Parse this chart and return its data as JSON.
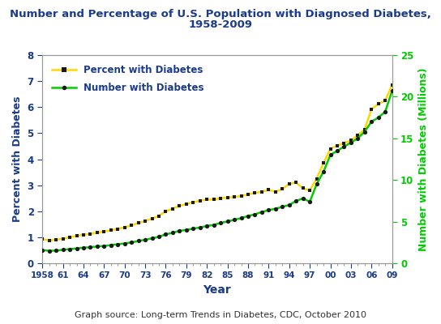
{
  "title_line1": "Number and Percentage of U.S. Population with Diagnosed Diabetes,",
  "title_line2": "1958-2009",
  "title_color": "#1a3a8a",
  "xlabel": "Year",
  "ylabel_left": "Percent with Diabetes",
  "ylabel_right": "Number with Diabetes (Millions)",
  "ylabel_color_left": "#1a3a8a",
  "ylabel_color_right": "#00bb00",
  "source_text": "Graph source: Long-term Trends in Diabetes, CDC, October 2010",
  "xlim": [
    1958,
    2009
  ],
  "ylim_left": [
    0,
    8
  ],
  "ylim_right": [
    0,
    25
  ],
  "xtick_labels": [
    "1958",
    "61",
    "64",
    "67",
    "70",
    "73",
    "76",
    "79",
    "82",
    "85",
    "88",
    "91",
    "94",
    "97",
    "00",
    "03",
    "06",
    "09"
  ],
  "xtick_positions": [
    1958,
    1961,
    1964,
    1967,
    1970,
    1973,
    1976,
    1979,
    1982,
    1985,
    1988,
    1991,
    1994,
    1997,
    2000,
    2003,
    2006,
    2009
  ],
  "percent_years": [
    1958,
    1959,
    1960,
    1961,
    1962,
    1963,
    1964,
    1965,
    1966,
    1967,
    1968,
    1969,
    1970,
    1971,
    1972,
    1973,
    1974,
    1975,
    1976,
    1977,
    1978,
    1979,
    1980,
    1981,
    1982,
    1983,
    1984,
    1985,
    1986,
    1987,
    1988,
    1989,
    1990,
    1991,
    1992,
    1993,
    1994,
    1995,
    1996,
    1997,
    1998,
    1999,
    2000,
    2001,
    2002,
    2003,
    2004,
    2005,
    2006,
    2007,
    2008,
    2009
  ],
  "percent_values": [
    0.93,
    0.88,
    0.9,
    0.95,
    1.0,
    1.05,
    1.1,
    1.13,
    1.18,
    1.22,
    1.27,
    1.32,
    1.38,
    1.45,
    1.55,
    1.62,
    1.72,
    1.82,
    2.0,
    2.1,
    2.2,
    2.28,
    2.35,
    2.4,
    2.45,
    2.45,
    2.5,
    2.52,
    2.55,
    2.58,
    2.65,
    2.7,
    2.75,
    2.82,
    2.75,
    2.85,
    3.05,
    3.1,
    2.88,
    2.8,
    3.25,
    3.85,
    4.4,
    4.52,
    4.62,
    4.72,
    4.92,
    5.15,
    5.92,
    6.12,
    6.25,
    6.85
  ],
  "number_years": [
    1958,
    1959,
    1960,
    1961,
    1962,
    1963,
    1964,
    1965,
    1966,
    1967,
    1968,
    1969,
    1970,
    1971,
    1972,
    1973,
    1974,
    1975,
    1976,
    1977,
    1978,
    1979,
    1980,
    1981,
    1982,
    1983,
    1984,
    1985,
    1986,
    1987,
    1988,
    1989,
    1990,
    1991,
    1992,
    1993,
    1994,
    1995,
    1996,
    1997,
    1998,
    1999,
    2000,
    2001,
    2002,
    2003,
    2004,
    2005,
    2006,
    2007,
    2008,
    2009
  ],
  "number_values_millions": [
    1.58,
    1.5,
    1.52,
    1.62,
    1.7,
    1.78,
    1.87,
    1.93,
    2.02,
    2.08,
    2.18,
    2.28,
    2.38,
    2.5,
    2.68,
    2.82,
    3.0,
    3.18,
    3.48,
    3.66,
    3.9,
    4.0,
    4.16,
    4.3,
    4.48,
    4.6,
    4.85,
    5.02,
    5.22,
    5.42,
    5.68,
    5.88,
    6.16,
    6.38,
    6.55,
    6.78,
    7.0,
    7.48,
    7.8,
    7.38,
    9.5,
    11.0,
    13.0,
    13.5,
    14.0,
    14.5,
    15.0,
    15.8,
    17.0,
    17.5,
    18.2,
    20.7
  ],
  "percent_line_color": "#FFD700",
  "percent_marker_color": "#1a1a1a",
  "number_line_color": "#00cc00",
  "number_marker_color": "#1a1a1a",
  "background_color": "#ffffff",
  "plot_bg_color": "#ffffff",
  "legend_text_color": "#1a3a8a",
  "tick_color": "#1a3a8a",
  "legend_label_percent": "Percent with Diabetes",
  "legend_label_number": "Number with Diabetes"
}
